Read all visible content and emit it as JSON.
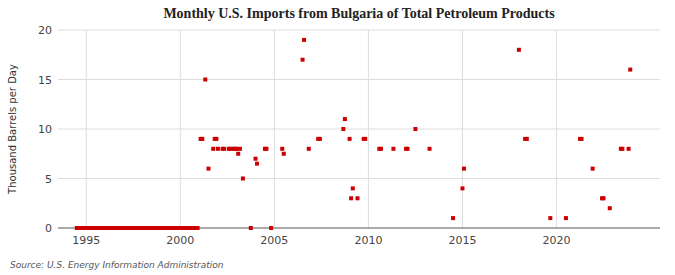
{
  "chart_data": {
    "type": "scatter",
    "title": "Monthly U.S. Imports from Bulgaria of Total Petroleum Products",
    "ylabel": "Thousand Barrels per Day",
    "annotations": [
      "Source: U.S. Energy Information Administration"
    ],
    "color": "#cc0000",
    "marker": "square",
    "grid": true,
    "xlim": [
      1993.5,
      2025.5
    ],
    "xticks": [
      1995,
      2000,
      2005,
      2010,
      2015,
      2020
    ],
    "ylim": [
      0,
      20
    ],
    "yticks": [
      0,
      5,
      10,
      15,
      20
    ],
    "x": [
      1994.5,
      1994.6,
      1994.7,
      1994.8,
      1994.9,
      1995.0,
      1995.08,
      1995.17,
      1995.25,
      1995.33,
      1995.42,
      1995.5,
      1995.58,
      1995.67,
      1995.75,
      1995.83,
      1995.92,
      1996.0,
      1996.08,
      1996.17,
      1996.25,
      1996.33,
      1996.42,
      1996.5,
      1996.58,
      1996.67,
      1996.75,
      1996.83,
      1996.92,
      1997.0,
      1997.08,
      1997.17,
      1997.25,
      1997.33,
      1997.42,
      1997.5,
      1997.58,
      1997.67,
      1997.75,
      1997.83,
      1997.92,
      1998.0,
      1998.08,
      1998.17,
      1998.25,
      1998.33,
      1998.42,
      1998.5,
      1998.58,
      1998.67,
      1998.75,
      1998.83,
      1998.92,
      1999.0,
      1999.08,
      1999.17,
      1999.25,
      1999.33,
      1999.42,
      1999.5,
      1999.58,
      1999.67,
      1999.75,
      1999.83,
      1999.92,
      2000.0,
      2000.08,
      2000.17,
      2000.25,
      2000.33,
      2000.42,
      2000.5,
      2000.58,
      2000.67,
      2000.75,
      2000.83,
      2000.92,
      2001.08,
      2001.17,
      2001.33,
      2001.5,
      2001.75,
      2001.83,
      2001.92,
      2002.0,
      2002.25,
      2002.33,
      2002.58,
      2002.67,
      2002.83,
      2002.92,
      2003.0,
      2003.08,
      2003.17,
      2003.33,
      2003.75,
      2004.0,
      2004.08,
      2004.5,
      2004.58,
      2004.83,
      2005.42,
      2005.5,
      2006.5,
      2006.58,
      2006.83,
      2007.33,
      2007.42,
      2008.67,
      2008.75,
      2009.0,
      2009.08,
      2009.17,
      2009.42,
      2009.75,
      2009.83,
      2010.58,
      2010.67,
      2011.33,
      2012.0,
      2012.08,
      2012.5,
      2013.25,
      2014.5,
      2015.0,
      2015.08,
      2018.0,
      2018.33,
      2018.42,
      2019.67,
      2020.5,
      2021.25,
      2021.33,
      2021.92,
      2022.42,
      2022.5,
      2022.83,
      2023.42,
      2023.5,
      2023.83,
      2023.92
    ],
    "values": [
      0,
      0,
      0,
      0,
      0,
      0,
      0,
      0,
      0,
      0,
      0,
      0,
      0,
      0,
      0,
      0,
      0,
      0,
      0,
      0,
      0,
      0,
      0,
      0,
      0,
      0,
      0,
      0,
      0,
      0,
      0,
      0,
      0,
      0,
      0,
      0,
      0,
      0,
      0,
      0,
      0,
      0,
      0,
      0,
      0,
      0,
      0,
      0,
      0,
      0,
      0,
      0,
      0,
      0,
      0,
      0,
      0,
      0,
      0,
      0,
      0,
      0,
      0,
      0,
      0,
      0,
      0,
      0,
      0,
      0,
      0,
      0,
      0,
      0,
      0,
      0,
      0,
      9,
      9,
      15,
      6,
      8,
      9,
      9,
      8,
      8,
      8,
      8,
      8,
      8,
      8,
      8,
      7.5,
      8,
      5,
      0,
      7,
      6.5,
      8,
      8,
      0,
      8,
      7.5,
      17,
      19,
      8,
      9,
      9,
      10,
      11,
      9,
      3,
      4,
      3,
      9,
      9,
      8,
      8,
      8,
      8,
      8,
      10,
      8,
      1,
      4,
      6,
      18,
      9,
      9,
      1,
      1,
      9,
      9,
      6,
      3,
      3,
      2,
      8,
      8,
      8,
      16
    ]
  }
}
